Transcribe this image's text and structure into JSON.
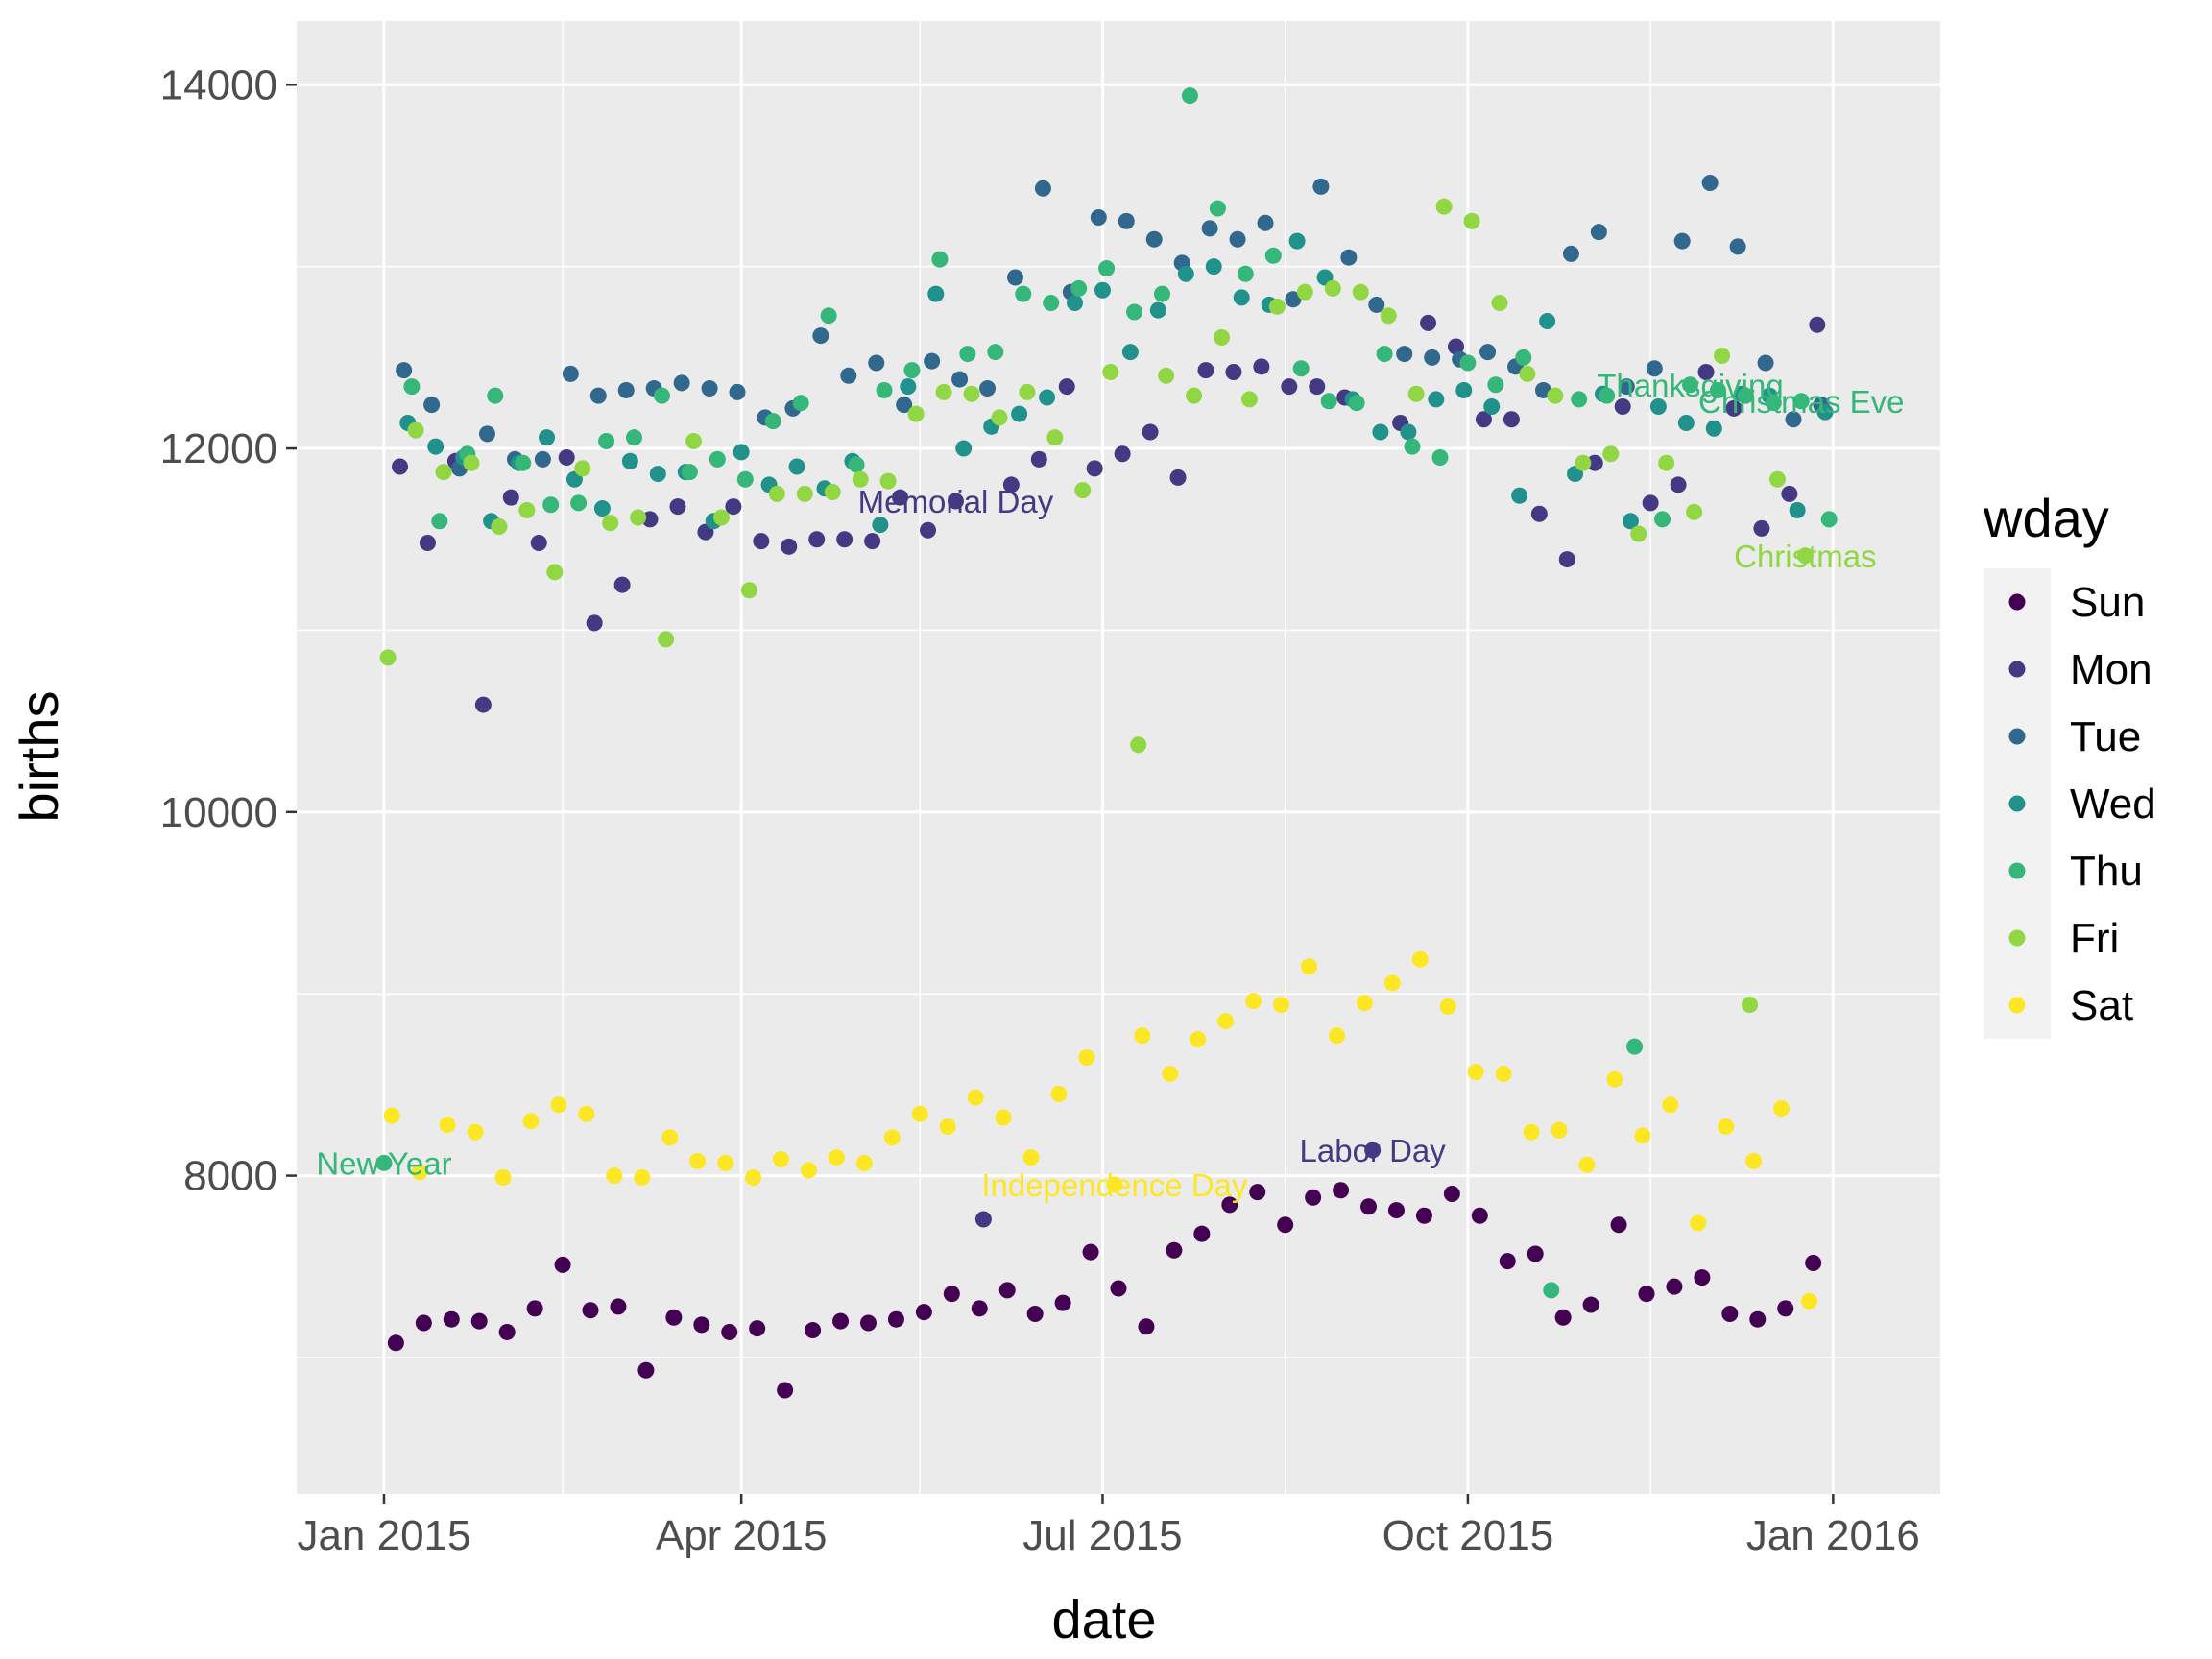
{
  "chart_data": {
    "type": "scatter",
    "xlabel": "date",
    "ylabel": "births",
    "xlim": [
      "2014-12-10",
      "2016-01-28"
    ],
    "ylim": [
      6250,
      14350
    ],
    "x_ticks": [
      {
        "date": "2015-01-01",
        "label": "Jan 2015"
      },
      {
        "date": "2015-04-01",
        "label": "Apr 2015"
      },
      {
        "date": "2015-07-01",
        "label": "Jul 2015"
      },
      {
        "date": "2015-10-01",
        "label": "Oct 2015"
      },
      {
        "date": "2016-01-01",
        "label": "Jan 2016"
      }
    ],
    "x_minor": [
      "2015-02-15",
      "2015-05-16",
      "2015-08-16",
      "2015-11-16"
    ],
    "y_ticks": [
      8000,
      10000,
      12000,
      14000
    ],
    "y_minor": [
      7000,
      9000,
      11000,
      13000
    ],
    "grid": true,
    "legend": {
      "title": "wday",
      "position": "right"
    },
    "series": [
      {
        "name": "Sun",
        "color": "#440154",
        "x": [
          "2015-01-04",
          "2015-01-11",
          "2015-01-18",
          "2015-01-25",
          "2015-02-01",
          "2015-02-08",
          "2015-02-15",
          "2015-02-22",
          "2015-03-01",
          "2015-03-08",
          "2015-03-15",
          "2015-03-22",
          "2015-03-29",
          "2015-04-05",
          "2015-04-12",
          "2015-04-19",
          "2015-04-26",
          "2015-05-03",
          "2015-05-10",
          "2015-05-17",
          "2015-05-24",
          "2015-05-31",
          "2015-06-07",
          "2015-06-14",
          "2015-06-21",
          "2015-06-28",
          "2015-07-05",
          "2015-07-12",
          "2015-07-19",
          "2015-07-26",
          "2015-08-02",
          "2015-08-09",
          "2015-08-16",
          "2015-08-23",
          "2015-08-30",
          "2015-09-06",
          "2015-09-13",
          "2015-09-20",
          "2015-09-27",
          "2015-10-04",
          "2015-10-11",
          "2015-10-18",
          "2015-10-25",
          "2015-11-01",
          "2015-11-08",
          "2015-11-15",
          "2015-11-22",
          "2015-11-29",
          "2015-12-06",
          "2015-12-13",
          "2015-12-20",
          "2015-12-27"
        ],
        "y": [
          7080,
          7190,
          7210,
          7200,
          7140,
          7270,
          7510,
          7260,
          7280,
          6930,
          7220,
          7180,
          7140,
          7160,
          6820,
          7150,
          7200,
          7190,
          7210,
          7250,
          7350,
          7270,
          7370,
          7240,
          7300,
          7580,
          7380,
          7170,
          7590,
          7680,
          7840,
          7910,
          7730,
          7880,
          7920,
          7830,
          7810,
          7780,
          7900,
          7780,
          7530,
          7570,
          7220,
          7290,
          7730,
          7350,
          7390,
          7440,
          7240,
          7210,
          7270,
          7520
        ]
      },
      {
        "name": "Mon",
        "color": "#443983",
        "x": [
          "2015-01-05",
          "2015-01-12",
          "2015-01-19",
          "2015-01-26",
          "2015-02-02",
          "2015-02-09",
          "2015-02-16",
          "2015-02-23",
          "2015-03-02",
          "2015-03-09",
          "2015-03-16",
          "2015-03-23",
          "2015-03-30",
          "2015-04-06",
          "2015-04-13",
          "2015-04-20",
          "2015-04-27",
          "2015-05-04",
          "2015-05-11",
          "2015-05-18",
          "2015-05-25",
          "2015-06-01",
          "2015-06-08",
          "2015-06-15",
          "2015-06-22",
          "2015-06-29",
          "2015-07-06",
          "2015-07-13",
          "2015-07-20",
          "2015-07-27",
          "2015-08-03",
          "2015-08-10",
          "2015-08-17",
          "2015-08-24",
          "2015-08-31",
          "2015-09-07",
          "2015-09-14",
          "2015-09-21",
          "2015-09-28",
          "2015-10-05",
          "2015-10-12",
          "2015-10-19",
          "2015-10-26",
          "2015-11-02",
          "2015-11-09",
          "2015-11-16",
          "2015-11-23",
          "2015-11-30",
          "2015-12-07",
          "2015-12-14",
          "2015-12-21",
          "2015-12-28"
        ],
        "y": [
          11900,
          11480,
          11930,
          10590,
          11730,
          11480,
          11950,
          11040,
          11250,
          11610,
          11680,
          11540,
          11680,
          11490,
          11460,
          11500,
          11500,
          11490,
          11730,
          11550,
          11710,
          7760,
          11800,
          11940,
          12340,
          11890,
          11970,
          12090,
          11840,
          12430,
          12420,
          12450,
          12340,
          12340,
          12280,
          8140,
          12140,
          12690,
          12560,
          12160,
          12160,
          11640,
          11390,
          11920,
          12230,
          11700,
          11800,
          12420,
          12220,
          11560,
          11750,
          12680
        ]
      },
      {
        "name": "Tue",
        "color": "#31688e",
        "x": [
          "2015-01-06",
          "2015-01-13",
          "2015-01-20",
          "2015-01-27",
          "2015-02-03",
          "2015-02-10",
          "2015-02-17",
          "2015-02-24",
          "2015-03-03",
          "2015-03-10",
          "2015-03-17",
          "2015-03-24",
          "2015-03-31",
          "2015-04-07",
          "2015-04-14",
          "2015-04-21",
          "2015-04-28",
          "2015-05-05",
          "2015-05-12",
          "2015-05-19",
          "2015-05-26",
          "2015-06-02",
          "2015-06-09",
          "2015-06-16",
          "2015-06-23",
          "2015-06-30",
          "2015-07-07",
          "2015-07-14",
          "2015-07-21",
          "2015-07-28",
          "2015-08-04",
          "2015-08-11",
          "2015-08-18",
          "2015-08-25",
          "2015-09-01",
          "2015-09-08",
          "2015-09-15",
          "2015-09-22",
          "2015-09-29",
          "2015-10-06",
          "2015-10-13",
          "2015-10-20",
          "2015-10-27",
          "2015-11-03",
          "2015-11-10",
          "2015-11-17",
          "2015-11-24",
          "2015-12-01",
          "2015-12-08",
          "2015-12-15",
          "2015-12-22",
          "2015-12-29"
        ],
        "y": [
          12430,
          12240,
          11890,
          12080,
          11940,
          11940,
          12410,
          12290,
          12320,
          12330,
          12360,
          12330,
          12310,
          12170,
          12220,
          12620,
          12400,
          12470,
          12240,
          12480,
          12380,
          12330,
          12940,
          13430,
          12860,
          13270,
          13250,
          13150,
          13020,
          13210,
          13150,
          13240,
          12820,
          13440,
          13050,
          12790,
          12520,
          12500,
          12490,
          12530,
          12450,
          12320,
          13070,
          13190,
          12340,
          12440,
          13140,
          13460,
          13110,
          12470,
          12160,
          12240
        ]
      },
      {
        "name": "Wed",
        "color": "#21918c",
        "x": [
          "2015-01-07",
          "2015-01-14",
          "2015-01-21",
          "2015-01-28",
          "2015-02-04",
          "2015-02-11",
          "2015-02-18",
          "2015-02-25",
          "2015-03-04",
          "2015-03-11",
          "2015-03-18",
          "2015-03-25",
          "2015-04-01",
          "2015-04-08",
          "2015-04-15",
          "2015-04-22",
          "2015-04-29",
          "2015-05-06",
          "2015-05-13",
          "2015-05-20",
          "2015-05-27",
          "2015-06-03",
          "2015-06-10",
          "2015-06-17",
          "2015-06-24",
          "2015-07-01",
          "2015-07-08",
          "2015-07-15",
          "2015-07-22",
          "2015-07-29",
          "2015-08-05",
          "2015-08-12",
          "2015-08-19",
          "2015-08-26",
          "2015-09-02",
          "2015-09-09",
          "2015-09-16",
          "2015-09-23",
          "2015-09-30",
          "2015-10-07",
          "2015-10-14",
          "2015-10-21",
          "2015-10-28",
          "2015-11-04",
          "2015-11-11",
          "2015-11-18",
          "2015-11-25",
          "2015-12-02",
          "2015-12-09",
          "2015-12-16",
          "2015-12-23",
          "2015-12-30"
        ],
        "y": [
          12140,
          12010,
          11950,
          11600,
          11920,
          12060,
          11830,
          11670,
          11930,
          11860,
          11870,
          11600,
          11980,
          11800,
          11900,
          11780,
          11930,
          11580,
          12340,
          12850,
          12000,
          12120,
          12190,
          12280,
          12800,
          12870,
          12530,
          12760,
          12960,
          13000,
          12830,
          12790,
          13140,
          12940,
          12270,
          12090,
          12090,
          12270,
          12320,
          12230,
          11740,
          12700,
          11860,
          12300,
          11600,
          12230,
          12140,
          12110,
          12300,
          12290,
          11660,
          12200
        ]
      },
      {
        "name": "Thu",
        "color": "#35b779",
        "x": [
          "2015-01-01",
          "2015-01-08",
          "2015-01-15",
          "2015-01-22",
          "2015-01-29",
          "2015-02-05",
          "2015-02-12",
          "2015-02-19",
          "2015-02-26",
          "2015-03-05",
          "2015-03-12",
          "2015-03-19",
          "2015-03-26",
          "2015-04-02",
          "2015-04-09",
          "2015-04-16",
          "2015-04-23",
          "2015-04-30",
          "2015-05-07",
          "2015-05-14",
          "2015-05-21",
          "2015-05-28",
          "2015-06-04",
          "2015-06-11",
          "2015-06-18",
          "2015-06-25",
          "2015-07-02",
          "2015-07-09",
          "2015-07-16",
          "2015-07-23",
          "2015-07-30",
          "2015-08-06",
          "2015-08-13",
          "2015-08-20",
          "2015-08-27",
          "2015-09-03",
          "2015-09-10",
          "2015-09-17",
          "2015-09-24",
          "2015-10-01",
          "2015-10-08",
          "2015-10-15",
          "2015-10-22",
          "2015-10-29",
          "2015-11-05",
          "2015-11-12",
          "2015-11-19",
          "2015-11-26",
          "2015-12-03",
          "2015-12-10",
          "2015-12-17",
          "2015-12-24",
          "2015-12-31"
        ],
        "y": [
          8070,
          12340,
          11600,
          11970,
          12290,
          11920,
          11690,
          11700,
          12040,
          12060,
          12290,
          11870,
          11940,
          11830,
          12150,
          12250,
          12730,
          11910,
          12320,
          12430,
          13040,
          12520,
          12530,
          12850,
          12800,
          12880,
          12990,
          12750,
          12850,
          13940,
          13320,
          12960,
          13060,
          12440,
          12260,
          12250,
          12520,
          12010,
          11950,
          12470,
          12350,
          12500,
          7370,
          12270,
          12290,
          8710,
          11610,
          12350,
          12320,
          12290,
          12250,
          12260,
          11610
        ]
      },
      {
        "name": "Fri",
        "color": "#90d743",
        "x": [
          "2015-01-02",
          "2015-01-09",
          "2015-01-16",
          "2015-01-23",
          "2015-01-30",
          "2015-02-06",
          "2015-02-13",
          "2015-02-20",
          "2015-02-27",
          "2015-03-06",
          "2015-03-13",
          "2015-03-20",
          "2015-03-27",
          "2015-04-03",
          "2015-04-10",
          "2015-04-17",
          "2015-04-24",
          "2015-05-01",
          "2015-05-08",
          "2015-05-15",
          "2015-05-22",
          "2015-05-29",
          "2015-06-05",
          "2015-06-12",
          "2015-06-19",
          "2015-06-26",
          "2015-07-03",
          "2015-07-10",
          "2015-07-17",
          "2015-07-24",
          "2015-07-31",
          "2015-08-07",
          "2015-08-14",
          "2015-08-21",
          "2015-08-28",
          "2015-09-04",
          "2015-09-11",
          "2015-09-18",
          "2015-09-25",
          "2015-10-02",
          "2015-10-09",
          "2015-10-16",
          "2015-10-23",
          "2015-10-30",
          "2015-11-06",
          "2015-11-13",
          "2015-11-20",
          "2015-11-27",
          "2015-12-04",
          "2015-12-11",
          "2015-12-18",
          "2015-12-25"
        ],
        "y": [
          10850,
          12100,
          11870,
          11920,
          11570,
          11660,
          11320,
          11890,
          11590,
          11620,
          10950,
          12040,
          11620,
          11220,
          11750,
          11750,
          11760,
          11830,
          11820,
          12190,
          12310,
          12300,
          12170,
          12310,
          12060,
          11770,
          12420,
          10370,
          12400,
          12290,
          12610,
          12270,
          12780,
          12860,
          12880,
          12860,
          12730,
          12300,
          13330,
          13250,
          12800,
          12410,
          12290,
          11920,
          11970,
          11530,
          11920,
          11650,
          12510,
          8940,
          11830,
          11410
        ]
      },
      {
        "name": "Sat",
        "color": "#fde725",
        "x": [
          "2015-01-03",
          "2015-01-10",
          "2015-01-17",
          "2015-01-24",
          "2015-01-31",
          "2015-02-07",
          "2015-02-14",
          "2015-02-21",
          "2015-02-28",
          "2015-03-07",
          "2015-03-14",
          "2015-03-21",
          "2015-03-28",
          "2015-04-04",
          "2015-04-11",
          "2015-04-18",
          "2015-04-25",
          "2015-05-02",
          "2015-05-09",
          "2015-05-16",
          "2015-05-23",
          "2015-05-30",
          "2015-06-06",
          "2015-06-13",
          "2015-06-20",
          "2015-06-27",
          "2015-07-04",
          "2015-07-11",
          "2015-07-18",
          "2015-07-25",
          "2015-08-01",
          "2015-08-08",
          "2015-08-15",
          "2015-08-22",
          "2015-08-29",
          "2015-09-05",
          "2015-09-12",
          "2015-09-19",
          "2015-09-26",
          "2015-10-03",
          "2015-10-10",
          "2015-10-17",
          "2015-10-24",
          "2015-10-31",
          "2015-11-07",
          "2015-11-14",
          "2015-11-21",
          "2015-11-28",
          "2015-12-05",
          "2015-12-12",
          "2015-12-19",
          "2015-12-26"
        ],
        "y": [
          8330,
          8020,
          8280,
          8240,
          7990,
          8300,
          8390,
          8340,
          8000,
          7990,
          8210,
          8080,
          8070,
          7990,
          8090,
          8030,
          8100,
          8070,
          8210,
          8340,
          8270,
          8430,
          8320,
          8100,
          8450,
          8650,
          7950,
          8770,
          8560,
          8750,
          8850,
          8960,
          8940,
          9150,
          8770,
          8950,
          9060,
          9190,
          8930,
          8570,
          8560,
          8240,
          8250,
          8060,
          8530,
          8220,
          8390,
          7740,
          8270,
          8080,
          8370,
          7310
        ]
      }
    ],
    "annotations": [
      {
        "label": "New Year",
        "x": "2015-01-01",
        "color": "#35b779"
      },
      {
        "label": "Memorial Day",
        "x": "2015-05-25",
        "color": "#443983"
      },
      {
        "label": "Independence Day",
        "x": "2015-07-04",
        "color": "#fde725"
      },
      {
        "label": "Labor Day",
        "x": "2015-09-07",
        "color": "#443983"
      },
      {
        "label": "Thanksgiving",
        "x": "2015-11-26",
        "color": "#35b779"
      },
      {
        "label": "Christmas Eve",
        "x": "2015-12-24",
        "color": "#35b779"
      },
      {
        "label": "Christmas",
        "x": "2015-12-25",
        "color": "#90d743"
      }
    ]
  }
}
